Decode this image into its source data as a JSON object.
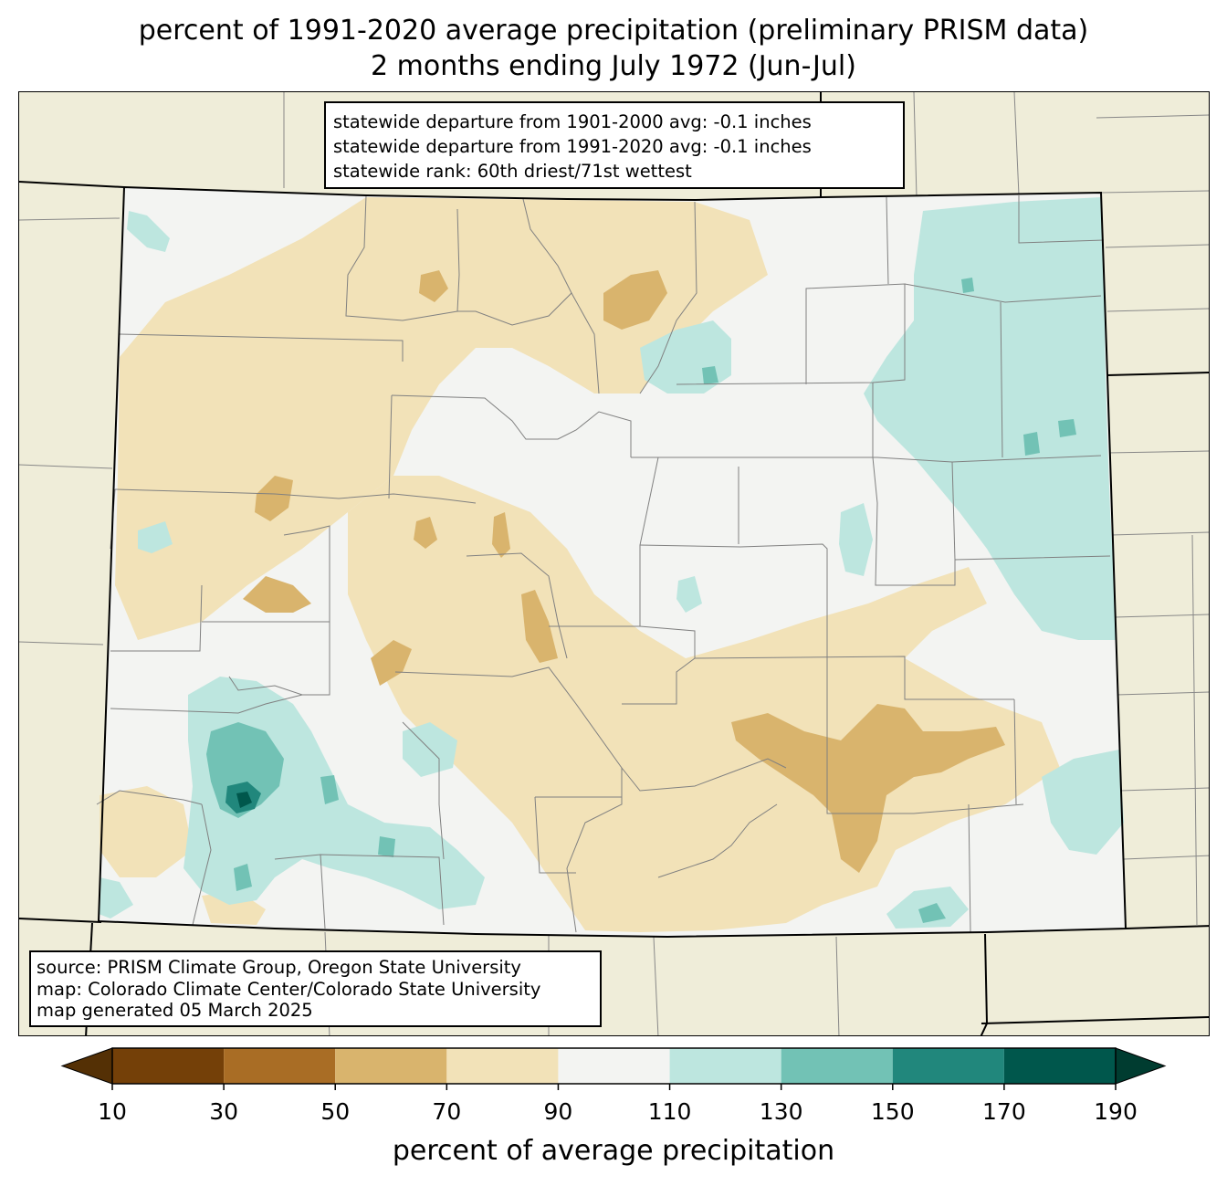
{
  "title": {
    "line1": "percent of 1991-2020 average precipitation (preliminary PRISM data)",
    "line2": "2 months ending July 1972 (Jun-Jul)"
  },
  "stats": {
    "line1": "statewide departure from 1901-2000 avg: -0.1 inches",
    "line2": "statewide departure from 1991-2020 avg: -0.1 inches",
    "line3": "statewide rank: 60th driest/71st wettest"
  },
  "source": {
    "line1": "source: PRISM Climate Group, Oregon State University",
    "line2": "map: Colorado Climate Center/Colorado State University",
    "line3": "map generated 05 March 2025"
  },
  "colorbar": {
    "label": "percent of average precipitation",
    "ticks": [
      "10",
      "30",
      "50",
      "70",
      "90",
      "110",
      "130",
      "150",
      "170",
      "190"
    ],
    "under_color": "#543005",
    "over_color": "#003c30",
    "bins": [
      {
        "from": 10,
        "to": 30,
        "color": "#744008"
      },
      {
        "from": 30,
        "to": 50,
        "color": "#a96d25"
      },
      {
        "from": 50,
        "to": 70,
        "color": "#d9b46d"
      },
      {
        "from": 70,
        "to": 90,
        "color": "#f2e2b8"
      },
      {
        "from": 90,
        "to": 110,
        "color": "#f3f4f2"
      },
      {
        "from": 110,
        "to": 130,
        "color": "#bde6df"
      },
      {
        "from": 130,
        "to": 150,
        "color": "#72c2b5"
      },
      {
        "from": 150,
        "to": 170,
        "color": "#21877c"
      },
      {
        "from": 170,
        "to": 190,
        "color": "#00574c"
      }
    ]
  },
  "map_colors": {
    "background": "#efedd9",
    "normal": "#f3f4f2",
    "dry": "#f2e2b8",
    "drier": "#d9b46d",
    "wet": "#bde6df",
    "wetter": "#72c2b5",
    "wettest": "#21877c",
    "extreme_wet": "#00574c"
  }
}
